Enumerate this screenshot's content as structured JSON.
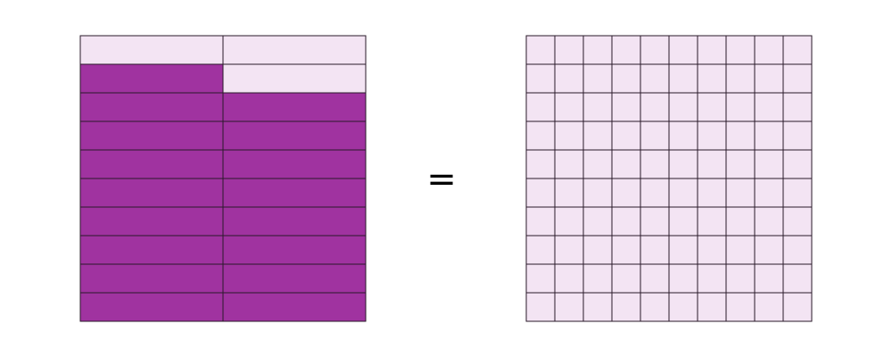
{
  "symbol": "="
}
